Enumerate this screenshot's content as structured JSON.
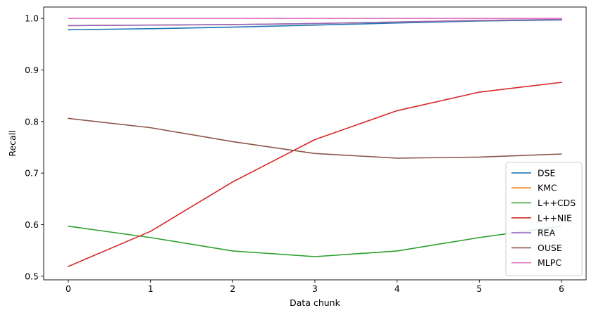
{
  "chart_data": {
    "type": "line",
    "title": "",
    "xlabel": "Data chunk",
    "ylabel": "Recall",
    "x": [
      0,
      1,
      2,
      3,
      4,
      5,
      6
    ],
    "xlim": [
      -0.3,
      6.3
    ],
    "ylim": [
      0.493,
      1.022
    ],
    "xticks": [
      "0",
      "1",
      "2",
      "3",
      "4",
      "5",
      "6"
    ],
    "yticks": [
      "0.5",
      "0.6",
      "0.7",
      "0.8",
      "0.9",
      "1.0"
    ],
    "grid": false,
    "legend_position": "lower-right",
    "series": [
      {
        "name": "DSE",
        "color": "#1f77b4",
        "values": [
          0.978,
          0.98,
          0.983,
          0.987,
          0.991,
          0.995,
          0.997
        ]
      },
      {
        "name": "KMC",
        "color": "#ff7f0e",
        "values": [
          0.986,
          0.987,
          0.988,
          0.99,
          0.993,
          0.996,
          0.998
        ]
      },
      {
        "name": "L++CDS",
        "color": "#2ca02c",
        "values": [
          0.597,
          0.575,
          0.549,
          0.538,
          0.549,
          0.575,
          0.597
        ]
      },
      {
        "name": "L++NIE",
        "color": "#d62728",
        "values": [
          0.519,
          0.587,
          0.683,
          0.765,
          0.821,
          0.857,
          0.876
        ]
      },
      {
        "name": "REA",
        "color": "#9467bd",
        "values": [
          0.986,
          0.987,
          0.988,
          0.99,
          0.993,
          0.996,
          0.998
        ]
      },
      {
        "name": "OUSE",
        "color": "#8c564b",
        "values": [
          0.806,
          0.788,
          0.761,
          0.738,
          0.729,
          0.731,
          0.737
        ]
      },
      {
        "name": "MLPC",
        "color": "#e377c2",
        "values": [
          1.0,
          1.0,
          1.0,
          1.0,
          1.0,
          1.0,
          1.0
        ]
      }
    ]
  }
}
